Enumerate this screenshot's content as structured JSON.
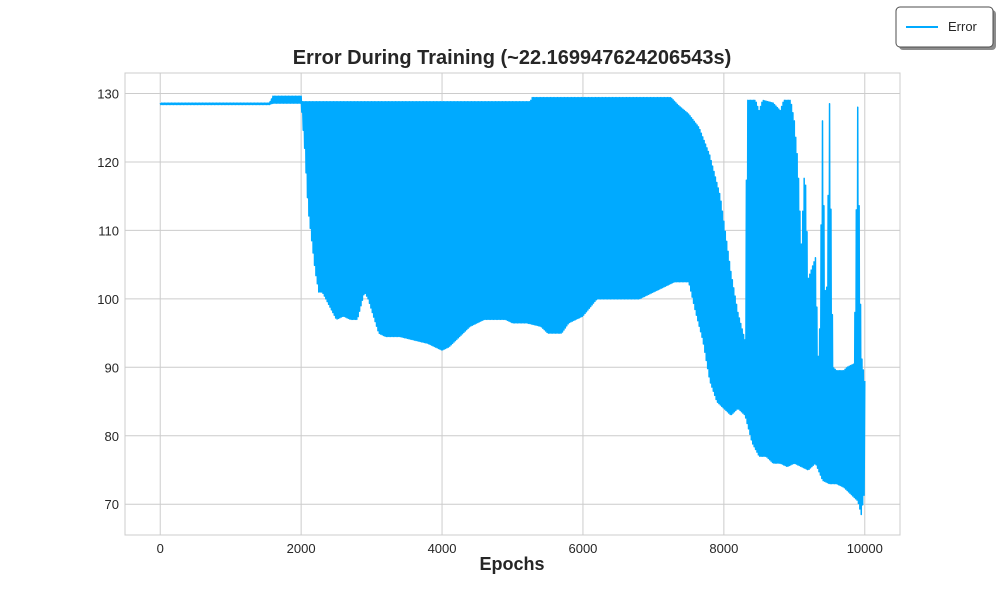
{
  "chart_data": {
    "type": "line",
    "title": "Error During Training (~22.169947624206543s)",
    "xlabel": "Epochs",
    "ylabel": "",
    "xlim": [
      -500,
      10500
    ],
    "ylim": [
      65.5,
      133
    ],
    "xticks": [
      0,
      2000,
      4000,
      6000,
      8000,
      10000
    ],
    "yticks": [
      70,
      80,
      90,
      100,
      110,
      120,
      130
    ],
    "grid": true,
    "legend_position": "top-right",
    "series": [
      {
        "name": "Error",
        "color": "#00aaff",
        "upper_envelope": [
          [
            0,
            128.6
          ],
          [
            1550,
            128.6
          ],
          [
            1600,
            129.6
          ],
          [
            2000,
            129.6
          ],
          [
            2020,
            128.8
          ],
          [
            5250,
            128.8
          ],
          [
            5280,
            129.4
          ],
          [
            7250,
            129.4
          ],
          [
            7350,
            128.3
          ],
          [
            7500,
            127.0
          ],
          [
            7650,
            125.0
          ],
          [
            7800,
            121.0
          ],
          [
            7950,
            115.0
          ],
          [
            8100,
            104.0
          ],
          [
            8200,
            98.0
          ],
          [
            8300,
            94.0
          ],
          [
            8330,
            129.0
          ],
          [
            8450,
            129.0
          ],
          [
            8500,
            127.5
          ],
          [
            8550,
            129.0
          ],
          [
            8700,
            128.6
          ],
          [
            8800,
            127.5
          ],
          [
            8850,
            129.0
          ],
          [
            8950,
            129.0
          ],
          [
            9000,
            126.0
          ],
          [
            9050,
            120.0
          ],
          [
            9100,
            108.0
          ],
          [
            9150,
            120.0
          ],
          [
            9200,
            103.0
          ],
          [
            9300,
            106.0
          ],
          [
            9350,
            88.0
          ],
          [
            9400,
            126.0
          ],
          [
            9450,
            95.0
          ],
          [
            9500,
            128.5
          ],
          [
            9550,
            90.0
          ],
          [
            9600,
            89.5
          ],
          [
            9700,
            89.5
          ],
          [
            9750,
            90.0
          ],
          [
            9850,
            90.5
          ],
          [
            9900,
            128.0
          ],
          [
            9950,
            92.0
          ],
          [
            10000,
            88.0
          ]
        ],
        "lower_envelope": [
          [
            0,
            128.4
          ],
          [
            1550,
            128.4
          ],
          [
            1600,
            128.6
          ],
          [
            2000,
            128.6
          ],
          [
            2050,
            122.0
          ],
          [
            2100,
            113.0
          ],
          [
            2200,
            104.0
          ],
          [
            2250,
            101.0
          ],
          [
            2300,
            101.0
          ],
          [
            2400,
            99.0
          ],
          [
            2500,
            97.0
          ],
          [
            2600,
            97.5
          ],
          [
            2700,
            97.0
          ],
          [
            2800,
            97.0
          ],
          [
            2900,
            101.0
          ],
          [
            2950,
            100.0
          ],
          [
            3100,
            95.0
          ],
          [
            3200,
            94.5
          ],
          [
            3400,
            94.5
          ],
          [
            3600,
            94.0
          ],
          [
            3800,
            93.5
          ],
          [
            4000,
            92.5
          ],
          [
            4100,
            93.0
          ],
          [
            4200,
            94.0
          ],
          [
            4400,
            96.0
          ],
          [
            4600,
            97.0
          ],
          [
            4900,
            97.0
          ],
          [
            5000,
            96.5
          ],
          [
            5200,
            96.5
          ],
          [
            5400,
            96.0
          ],
          [
            5500,
            95.0
          ],
          [
            5700,
            95.0
          ],
          [
            5800,
            96.5
          ],
          [
            6000,
            97.5
          ],
          [
            6200,
            100.0
          ],
          [
            6800,
            100.0
          ],
          [
            7000,
            101.0
          ],
          [
            7200,
            102.0
          ],
          [
            7300,
            102.5
          ],
          [
            7500,
            102.5
          ],
          [
            7600,
            98.0
          ],
          [
            7700,
            94.0
          ],
          [
            7800,
            88.0
          ],
          [
            7900,
            85.0
          ],
          [
            8000,
            84.0
          ],
          [
            8100,
            83.0
          ],
          [
            8200,
            84.0
          ],
          [
            8300,
            83.0
          ],
          [
            8400,
            79.0
          ],
          [
            8500,
            77.0
          ],
          [
            8600,
            77.0
          ],
          [
            8700,
            76.0
          ],
          [
            8800,
            76.0
          ],
          [
            8900,
            75.5
          ],
          [
            9000,
            76.0
          ],
          [
            9100,
            75.5
          ],
          [
            9200,
            75.0
          ],
          [
            9300,
            76.0
          ],
          [
            9400,
            73.5
          ],
          [
            9500,
            73.0
          ],
          [
            9600,
            73.0
          ],
          [
            9700,
            72.5
          ],
          [
            9800,
            71.5
          ],
          [
            9900,
            70.5
          ],
          [
            9950,
            68.5
          ],
          [
            10000,
            72.0
          ]
        ]
      }
    ]
  }
}
